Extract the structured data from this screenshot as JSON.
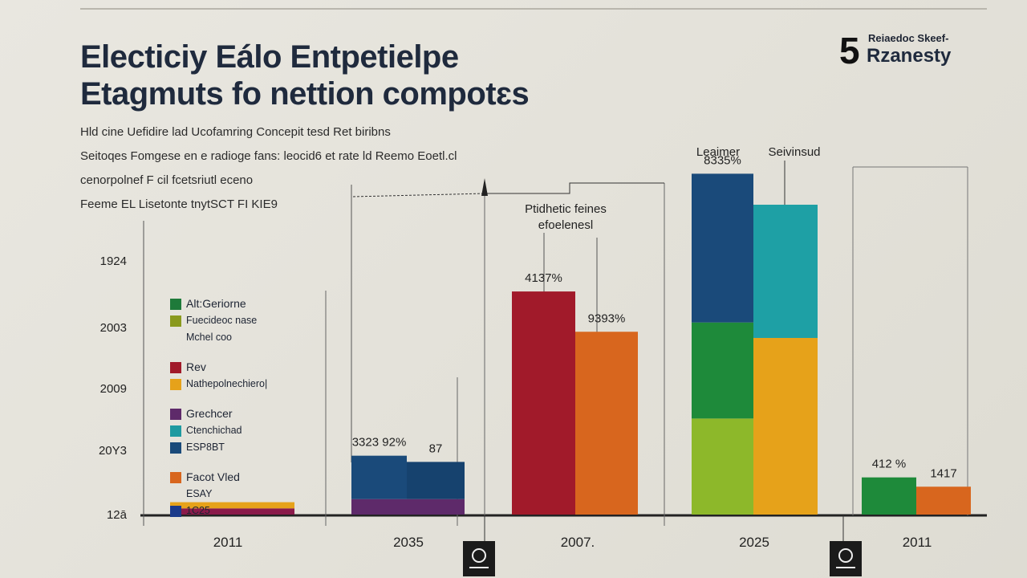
{
  "header": {
    "title_line1": "Electiciy Eálo Entpetielpe",
    "title_line2": "Etagmuts fo nettion compotɛs",
    "subtitle_lines": [
      "Hld cine Uefidire lad Ucofamring Concepit tesd Ret biribns",
      "Seitoqes Fomgese en e radioge fans: leocid6 et rate ld Reemo Eoetl.cl",
      "cenorpolnef F cil fcetsriutl eceno",
      "Feeme EL Lisetonte tnytSCT FI KIE9"
    ]
  },
  "logo": {
    "number": "5",
    "small": "Reiaedoc Skeef-",
    "big": "Rzanesty"
  },
  "legend": {
    "groups": [
      [
        {
          "color": "#1e7a3a",
          "label": "Alt:Geriorne"
        },
        {
          "color": "#8a9a1e",
          "label": "Fuecideoc nase",
          "sub": true
        },
        {
          "label": "Mchel coo",
          "sub": true
        }
      ],
      [
        {
          "color": "#a11a2a",
          "label": "Rev"
        },
        {
          "color": "#e6a21a",
          "label": "Nathepolnechiero|",
          "sub": true
        }
      ],
      [
        {
          "color": "#5e2a6a",
          "label": "Grechcer"
        },
        {
          "color": "#1e9aa0",
          "label": "Ctenchichad",
          "sub": true
        },
        {
          "color": "#1a4a7a",
          "label": "ESP8BT",
          "sub": true
        }
      ],
      [
        {
          "color": "#d8661e",
          "label": "Facot Vled"
        },
        {
          "label": "ESAY",
          "sub": true
        },
        {
          "color": "#1a3a8a",
          "label": "1C25",
          "sub": true
        }
      ]
    ]
  },
  "chart_data": {
    "type": "bar",
    "title": "Electiciy Eálo Entpetielpe Etagmuts fo nettion compotɛs",
    "xlabel": "",
    "ylabel": "",
    "ylim": [
      0,
      100
    ],
    "y_tick_labels": [
      "12ā",
      "20Y3",
      "2009",
      "2003",
      "1924"
    ],
    "categories": [
      "2011",
      "2035",
      "2007.",
      "2025",
      "2011"
    ],
    "bars": [
      {
        "category": 0,
        "segments": [
          {
            "color": "#8a1a4a",
            "value": 2
          },
          {
            "color": "#e6a21a",
            "value": 2
          }
        ],
        "label": ""
      },
      {
        "category": 1,
        "segments": [
          {
            "color": "#5e2a6a",
            "value": 5
          },
          {
            "color": "#1a4a7a",
            "value": 14
          }
        ],
        "label": "3323 92%"
      },
      {
        "category": 1,
        "segments": [
          {
            "color": "#5e2a6a",
            "value": 5
          },
          {
            "color": "#16426e",
            "value": 12
          }
        ],
        "label": "87"
      },
      {
        "category": 2,
        "segments": [
          {
            "color": "#a11a2a",
            "value": 72
          }
        ],
        "label": "4137%"
      },
      {
        "category": 2,
        "segments": [
          {
            "color": "#d8661e",
            "value": 59
          }
        ],
        "label": "9393%"
      },
      {
        "category": 3,
        "segments": [
          {
            "color": "#8db82a",
            "value": 31
          },
          {
            "color": "#1e8a3a",
            "value": 31
          },
          {
            "color": "#1a4a7a",
            "value": 48
          }
        ],
        "label": "8335%"
      },
      {
        "category": 3,
        "segments": [
          {
            "color": "#e6a21a",
            "value": 57
          },
          {
            "color": "#1ea0a5",
            "value": 43
          }
        ],
        "label": ""
      },
      {
        "category": 4,
        "segments": [
          {
            "color": "#1e8a3a",
            "value": 12
          }
        ],
        "label": "412 %"
      },
      {
        "category": 4,
        "segments": [
          {
            "color": "#d8661e",
            "value": 9
          }
        ],
        "label": "1417"
      }
    ],
    "annotations": {
      "effect_label_line1": "Ptidhetic feines",
      "effect_label_line2": "efoelenesl",
      "top_label_left": "Leaimer",
      "top_label_right": "Seivinsud"
    }
  }
}
